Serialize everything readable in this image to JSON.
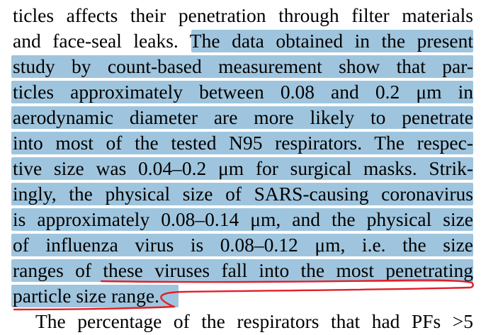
{
  "paragraph": {
    "lines": [
      "ticles affects their penetration through filter materials",
      "and face-seal leaks. The data obtained in the present",
      "study by count-based measurement show that par-",
      "ticles approximately between 0.08 and 0.2 μm in",
      "aerodynamic diameter are more likely to penetrate",
      "into most of the tested N95 respirators. The respec-",
      "tive size was 0.04–0.2 μm for surgical masks. Strik-",
      "ingly, the physical size of SARS-causing coronavirus",
      "is approximately 0.08–0.14 μm, and the physical size",
      "of influenza virus is 0.08–0.12 μm, i.e. the size",
      "ranges of these viruses fall into the most penetrating",
      "particle size range."
    ]
  },
  "next_paragraph": {
    "first_line": "The percentage of the respirators that had PFs >5"
  },
  "colors": {
    "highlight": "#9fc5de",
    "underline": "#e0202a",
    "text": "#000000"
  }
}
